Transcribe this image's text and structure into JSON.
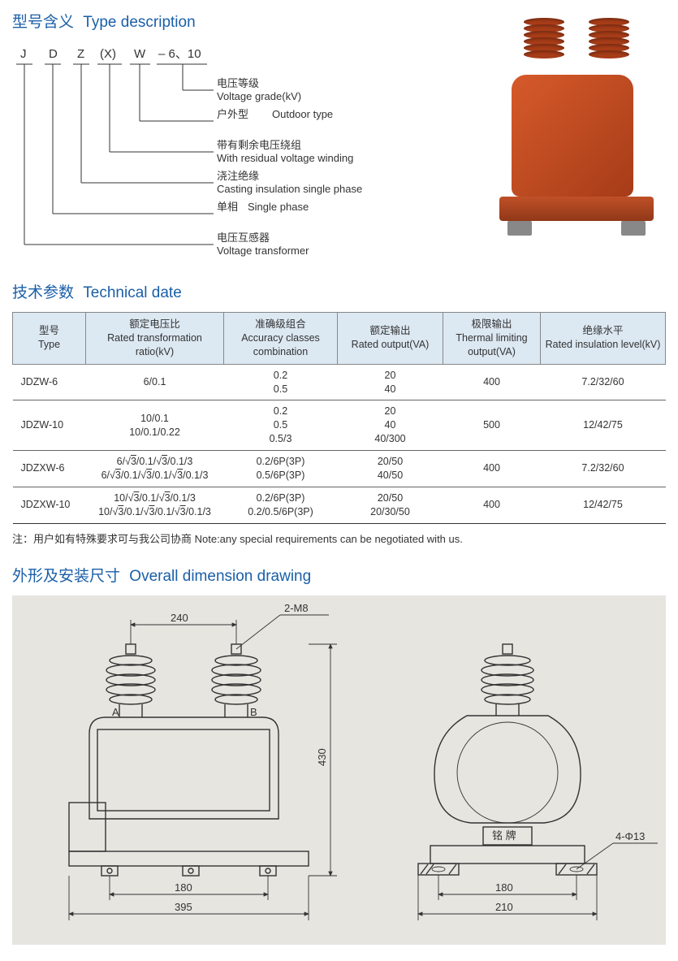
{
  "sections": {
    "type_desc": {
      "cn": "型号含义",
      "en": "Type description"
    },
    "tech": {
      "cn": "技术参数",
      "en": "Technical date"
    },
    "dim": {
      "cn": "外形及安装尺寸",
      "en": "Overall dimension drawing"
    }
  },
  "type_code": {
    "letters": [
      "J",
      "D",
      "Z",
      "(X)",
      "W",
      "– 6、10"
    ],
    "legend": [
      {
        "cn": "电压等级",
        "en": "Voltage grade(kV)"
      },
      {
        "cn": "户外型",
        "en": "Outdoor type"
      },
      {
        "cn": "带有剩余电压绕组",
        "en": "With residual voltage winding"
      },
      {
        "cn": "浇注绝缘",
        "en": "Casting insulation single phase"
      },
      {
        "cn": "单相",
        "en": "Single phase"
      },
      {
        "cn": "电压互感器",
        "en": "Voltage transformer"
      }
    ]
  },
  "product_colors": {
    "body": "#c05028",
    "dark": "#903818",
    "foot": "#888888"
  },
  "table": {
    "headers": [
      {
        "cn": "型号",
        "en": "Type"
      },
      {
        "cn": "额定电压比",
        "en": "Rated transformation ratio(kV)"
      },
      {
        "cn": "准确级组合",
        "en": "Accuracy classes combination"
      },
      {
        "cn": "额定输出",
        "en": "Rated output(VA)"
      },
      {
        "cn": "极限输出",
        "en": "Thermal limiting output(VA)"
      },
      {
        "cn": "绝缘水平",
        "en": "Rated insulation level(kV)"
      }
    ],
    "col_widths": [
      "90px",
      "170px",
      "140px",
      "130px",
      "120px",
      "120px"
    ],
    "rows": [
      {
        "type": "JDZW-6",
        "ratio": "6/0.1",
        "accuracy": "0.2\n0.5",
        "output": "20\n40",
        "thermal": "400",
        "insul": "7.2/32/60"
      },
      {
        "type": "JDZW-10",
        "ratio": "10/0.1\n10/0.1/0.22",
        "accuracy": "0.2\n0.5\n0.5/3",
        "output": "20\n40\n40/300",
        "thermal": "500",
        "insul": "12/42/75"
      },
      {
        "type": "JDZXW-6",
        "ratio": "6/√3/0.1/√3/0.1/3\n6/√3/0.1/√3/0.1/√3/0.1/3",
        "accuracy": "0.2/6P(3P)\n0.5/6P(3P)",
        "output": "20/50\n40/50",
        "thermal": "400",
        "insul": "7.2/32/60"
      },
      {
        "type": "JDZXW-10",
        "ratio": "10/√3/0.1/√3/0.1/3\n10/√3/0.1/√3/0.1/√3/0.1/3",
        "accuracy": "0.2/6P(3P)\n0.2/0.5/6P(3P)",
        "output": "20/50\n20/30/50",
        "thermal": "400",
        "insul": "12/42/75"
      }
    ]
  },
  "note": "注：用户如有特殊要求可与我公司协商 Note:any special requirements can be negotiated with us.",
  "dimensions": {
    "front": {
      "callout_top": "2-M8",
      "width_top": "240",
      "height_right": "430",
      "width_inner": "180",
      "width_outer": "395",
      "label_A": "A",
      "label_B": "B"
    },
    "side": {
      "callout": "4-Φ13",
      "width_inner": "180",
      "width_outer": "210",
      "plate_label": "铭  牌"
    },
    "background": "#e6e5e0",
    "stroke": "#333333"
  }
}
